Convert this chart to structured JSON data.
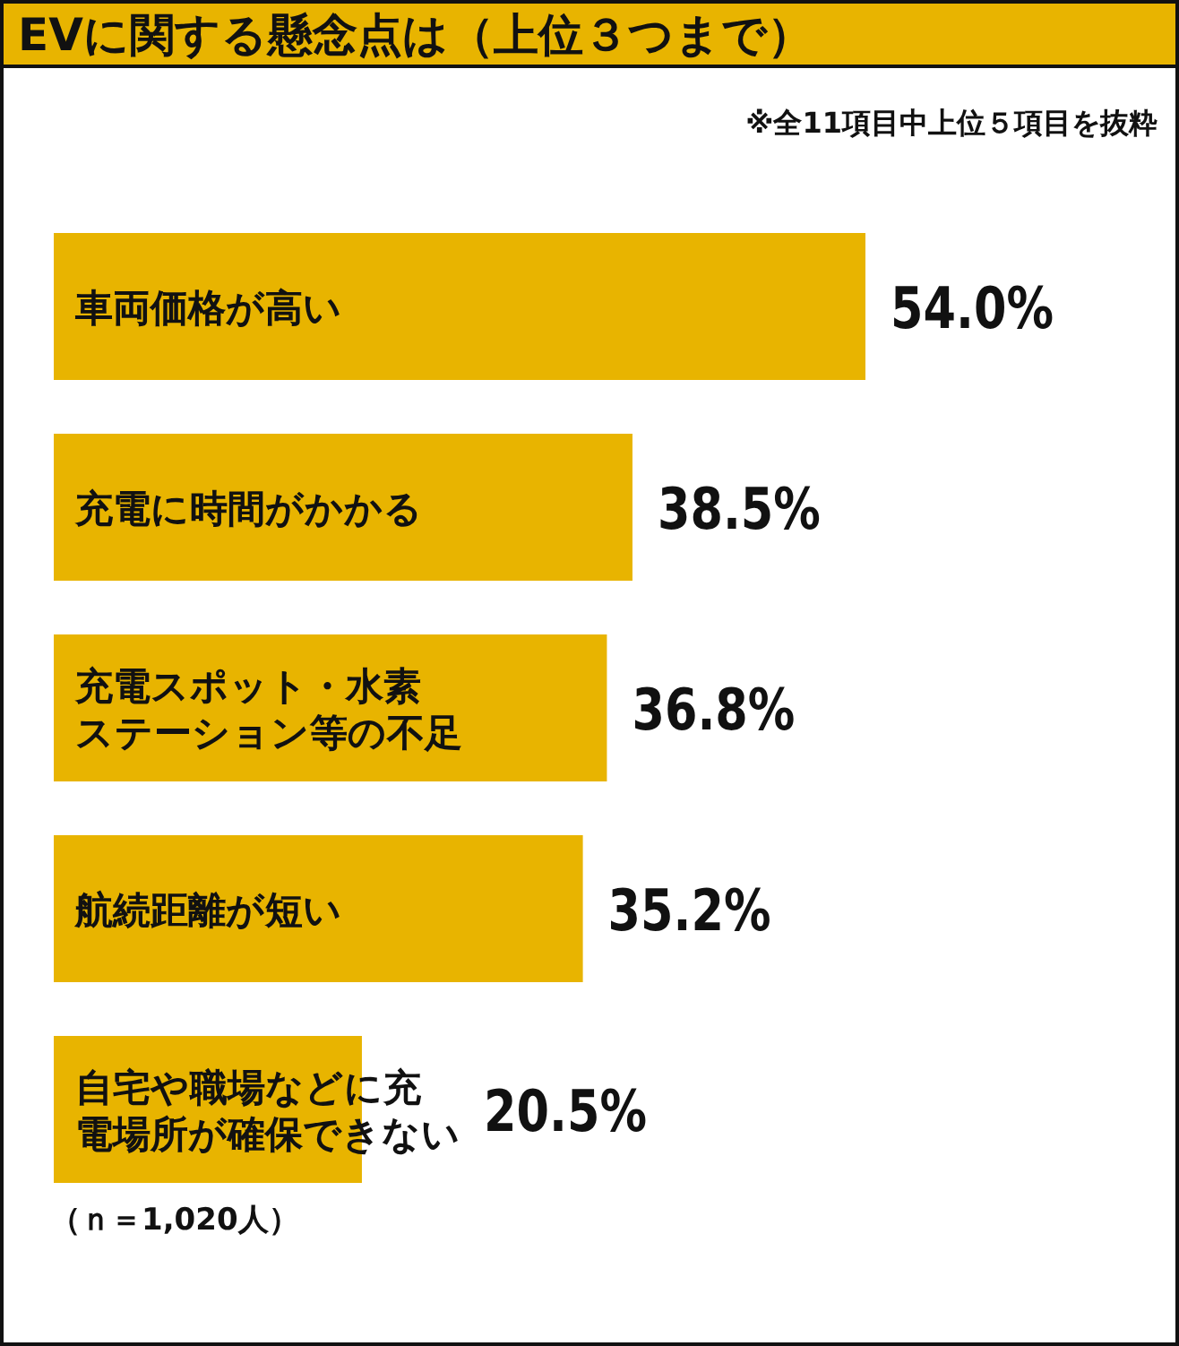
{
  "chart_data": {
    "type": "bar",
    "orientation": "horizontal",
    "title": "EVに関する懸念点は（上位３つまで）",
    "subtitle": "※全11項目中上位５項目を抜粋",
    "categories": [
      "車両価格が高い",
      "充電に時間がかかる",
      "充電スポット・水素ステーション等の不足",
      "航続距離が短い",
      "自宅や職場などに充電場所が確保できない"
    ],
    "values": [
      54.0,
      38.5,
      36.8,
      35.2,
      20.5
    ],
    "value_labels": [
      "54.0%",
      "38.5%",
      "36.8%",
      "35.2%",
      "20.5%"
    ],
    "color": "#e8b400",
    "annotations": [
      "（ｎ＝1,020人）"
    ]
  }
}
